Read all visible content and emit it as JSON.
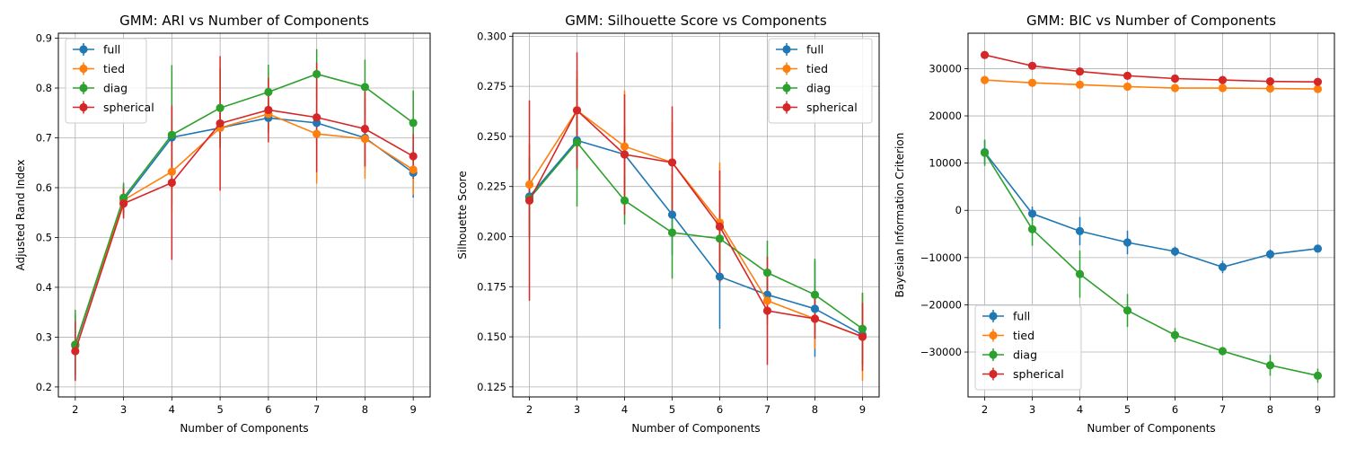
{
  "chart_data": [
    {
      "type": "line",
      "title": "GMM: ARI vs Number of Components",
      "xlabel": "Number of Components",
      "ylabel": "Adjusted Rand Index",
      "x": [
        2,
        3,
        4,
        5,
        6,
        7,
        8,
        9
      ],
      "xticks": [
        "2",
        "3",
        "4",
        "5",
        "6",
        "7",
        "8",
        "9"
      ],
      "xlim": [
        1.65,
        9.35
      ],
      "ylim": [
        0.18,
        0.91
      ],
      "yticks": [
        "0.2",
        "0.3",
        "0.4",
        "0.5",
        "0.6",
        "0.7",
        "0.8",
        "0.9"
      ],
      "grid": true,
      "legend_position": "upper-left",
      "series": [
        {
          "name": "full",
          "color": "#1f77b4",
          "values": [
            0.283,
            0.575,
            0.701,
            0.72,
            0.74,
            0.73,
            0.7,
            0.63
          ],
          "errors": [
            0.06,
            0.03,
            0.06,
            0.03,
            0.03,
            0.04,
            0.06,
            0.05
          ]
        },
        {
          "name": "tied",
          "color": "#ff7f0e",
          "values": [
            0.285,
            0.575,
            0.632,
            0.72,
            0.748,
            0.708,
            0.698,
            0.636
          ],
          "errors": [
            0.06,
            0.03,
            0.08,
            0.04,
            0.03,
            0.1,
            0.08,
            0.05
          ]
        },
        {
          "name": "diag",
          "color": "#2ca02c",
          "values": [
            0.285,
            0.58,
            0.706,
            0.76,
            0.792,
            0.828,
            0.802,
            0.73
          ],
          "errors": [
            0.07,
            0.03,
            0.14,
            0.08,
            0.055,
            0.05,
            0.055,
            0.065
          ]
        },
        {
          "name": "spherical",
          "color": "#d62728",
          "values": [
            0.272,
            0.568,
            0.61,
            0.729,
            0.756,
            0.741,
            0.718,
            0.663
          ],
          "errors": [
            0.06,
            0.03,
            0.155,
            0.135,
            0.065,
            0.11,
            0.075,
            0.045
          ]
        }
      ]
    },
    {
      "type": "line",
      "title": "GMM: Silhouette Score vs Components",
      "xlabel": "Number of Components",
      "ylabel": "Silhouette Score",
      "x": [
        2,
        3,
        4,
        5,
        6,
        7,
        8,
        9
      ],
      "xticks": [
        "2",
        "3",
        "4",
        "5",
        "6",
        "7",
        "8",
        "9"
      ],
      "xlim": [
        1.65,
        9.35
      ],
      "ylim": [
        0.12,
        0.3015
      ],
      "yticks": [
        "0.125",
        "0.150",
        "0.175",
        "0.200",
        "0.225",
        "0.250",
        "0.275",
        "0.300"
      ],
      "grid": true,
      "legend_position": "upper-right",
      "series": [
        {
          "name": "full",
          "color": "#1f77b4",
          "values": [
            0.22,
            0.248,
            0.241,
            0.211,
            0.18,
            0.171,
            0.164,
            0.151
          ],
          "errors": [
            0.02,
            0.015,
            0.015,
            0.02,
            0.026,
            0.012,
            0.024,
            0.015
          ]
        },
        {
          "name": "tied",
          "color": "#ff7f0e",
          "values": [
            0.226,
            0.263,
            0.245,
            0.237,
            0.207,
            0.168,
            0.159,
            0.15
          ],
          "errors": [
            0.02,
            0.02,
            0.028,
            0.02,
            0.03,
            0.012,
            0.015,
            0.022
          ]
        },
        {
          "name": "diag",
          "color": "#2ca02c",
          "values": [
            0.219,
            0.247,
            0.218,
            0.202,
            0.199,
            0.182,
            0.171,
            0.154
          ],
          "errors": [
            0.02,
            0.032,
            0.012,
            0.023,
            0.012,
            0.016,
            0.018,
            0.018
          ]
        },
        {
          "name": "spherical",
          "color": "#d62728",
          "values": [
            0.218,
            0.263,
            0.241,
            0.237,
            0.205,
            0.163,
            0.159,
            0.15
          ],
          "errors": [
            0.05,
            0.029,
            0.03,
            0.028,
            0.028,
            0.027,
            0.01,
            0.017
          ]
        }
      ]
    },
    {
      "type": "line",
      "title": "GMM: BIC vs Number of Components",
      "xlabel": "Number of Components",
      "ylabel": "Bayesian Information Criterion",
      "x": [
        2,
        3,
        4,
        5,
        6,
        7,
        8,
        9
      ],
      "xticks": [
        "2",
        "3",
        "4",
        "5",
        "6",
        "7",
        "8",
        "9"
      ],
      "xlim": [
        1.65,
        9.35
      ],
      "ylim": [
        -39500,
        37500
      ],
      "yticks": [
        "−30000",
        "−20000",
        "−10000",
        "0",
        "10000",
        "20000",
        "30000"
      ],
      "ytick_values": [
        -30000,
        -20000,
        -10000,
        0,
        10000,
        20000,
        30000
      ],
      "grid": true,
      "legend_position": "lower-left",
      "series": [
        {
          "name": "full",
          "color": "#1f77b4",
          "values": [
            12300,
            -700,
            -4400,
            -6800,
            -8700,
            -12000,
            -9300,
            -8100
          ],
          "errors": [
            2500,
            1500,
            3000,
            2500,
            1000,
            1300,
            1000,
            800
          ]
        },
        {
          "name": "tied",
          "color": "#ff7f0e",
          "values": [
            27600,
            27000,
            26600,
            26200,
            25900,
            25900,
            25800,
            25700
          ],
          "errors": [
            400,
            300,
            300,
            300,
            300,
            300,
            300,
            300
          ]
        },
        {
          "name": "diag",
          "color": "#2ca02c",
          "values": [
            12200,
            -4000,
            -13500,
            -21200,
            -26400,
            -29800,
            -32800,
            -35000
          ],
          "errors": [
            2800,
            3500,
            5000,
            3500,
            1500,
            800,
            2200,
            1500
          ]
        },
        {
          "name": "spherical",
          "color": "#d62728",
          "values": [
            32900,
            30600,
            29400,
            28500,
            27900,
            27600,
            27300,
            27200
          ],
          "errors": [
            300,
            300,
            300,
            300,
            300,
            300,
            300,
            300
          ]
        }
      ]
    }
  ]
}
